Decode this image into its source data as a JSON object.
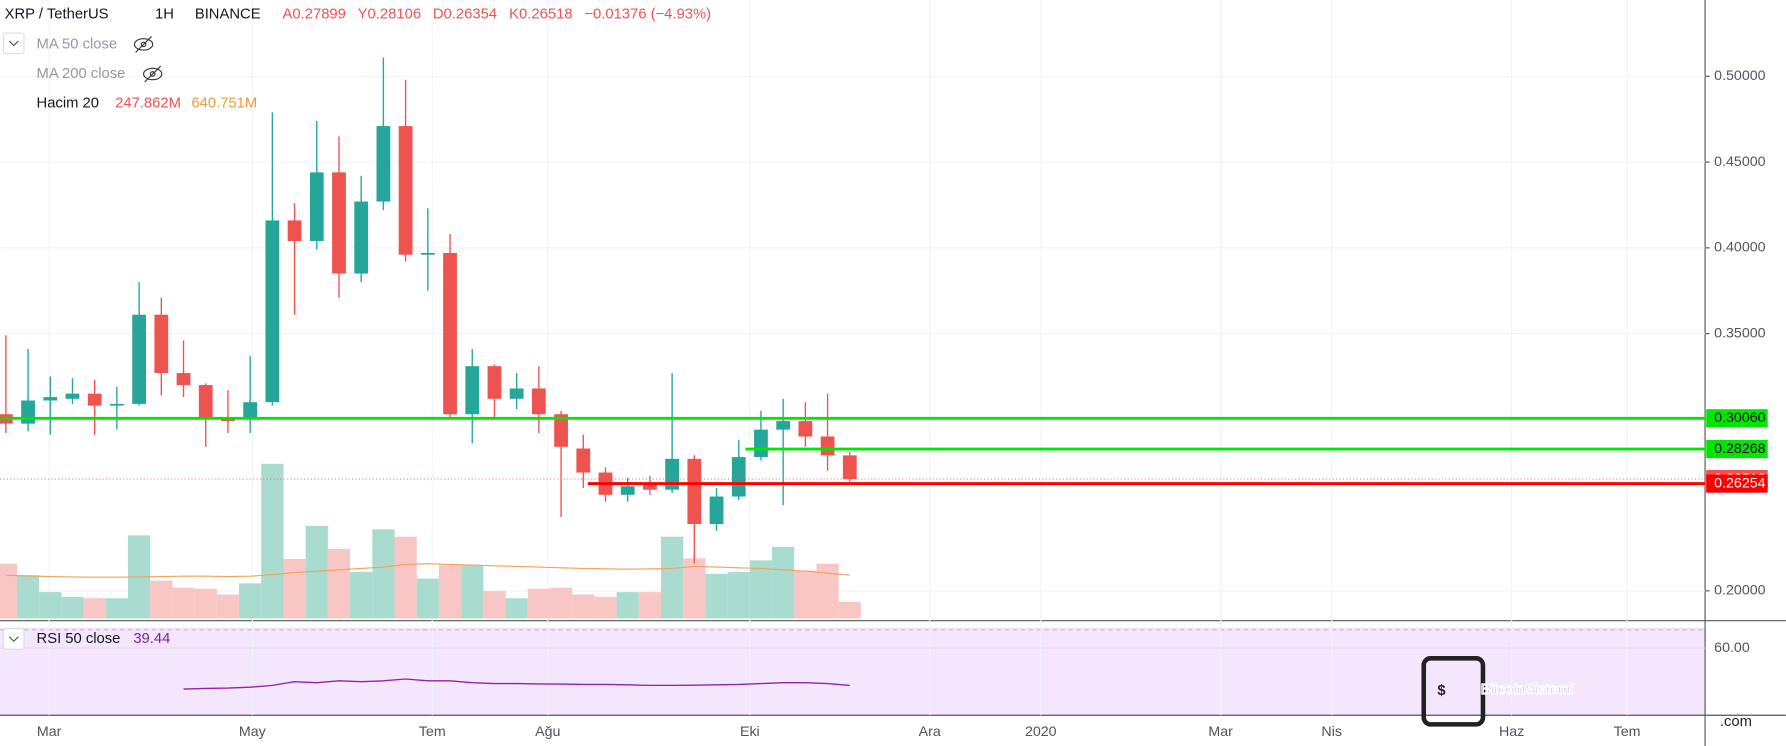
{
  "chart_data": {
    "type": "candlestick",
    "header": {
      "symbol": "XRP / TetherUS",
      "interval": "1H",
      "exchange": "BINANCE",
      "ohlc": [
        "A0.27899",
        "Y0.28106",
        "D0.26354",
        "K0.26518"
      ],
      "change": "−0.01376 (−4.93%)"
    },
    "indicators": {
      "ma50": "MA 50 close",
      "ma200": "MA 200 close",
      "volume": "Hacim 20",
      "volume_values": [
        "247.862M",
        "640.751M"
      ],
      "rsi": "RSI 50 close",
      "rsi_value": "39.44"
    },
    "open": [
      0.303,
      0.2975,
      0.311,
      0.312,
      0.315,
      0.308,
      0.309,
      0.361,
      0.327,
      0.32,
      0.3,
      0.3,
      0.31,
      0.416,
      0.404,
      0.444,
      0.385,
      0.427,
      0.471,
      0.396,
      0.397,
      0.303,
      0.331,
      0.312,
      0.318,
      0.303,
      0.283,
      0.269,
      0.256,
      0.262,
      0.259,
      0.277,
      0.239,
      0.255,
      0.278,
      0.294,
      0.299,
      0.29,
      0.27899
    ],
    "close": [
      0.2975,
      0.311,
      0.313,
      0.315,
      0.308,
      0.309,
      0.361,
      0.327,
      0.32,
      0.3,
      0.299,
      0.31,
      0.416,
      0.404,
      0.444,
      0.385,
      0.427,
      0.471,
      0.396,
      0.397,
      0.303,
      0.331,
      0.312,
      0.318,
      0.303,
      0.284,
      0.269,
      0.256,
      0.261,
      0.259,
      0.277,
      0.239,
      0.255,
      0.278,
      0.294,
      0.299,
      0.29,
      0.279,
      0.26518
    ],
    "high": [
      0.349,
      0.341,
      0.325,
      0.324,
      0.323,
      0.319,
      0.38,
      0.371,
      0.346,
      0.321,
      0.317,
      0.337,
      0.479,
      0.426,
      0.474,
      0.465,
      0.442,
      0.511,
      0.498,
      0.423,
      0.408,
      0.341,
      0.332,
      0.327,
      0.331,
      0.305,
      0.291,
      0.272,
      0.266,
      0.267,
      0.327,
      0.279,
      0.26,
      0.288,
      0.305,
      0.312,
      0.31,
      0.315,
      0.28106
    ],
    "low": [
      0.292,
      0.293,
      0.291,
      0.309,
      0.291,
      0.294,
      0.308,
      0.314,
      0.313,
      0.284,
      0.292,
      0.292,
      0.308,
      0.361,
      0.399,
      0.371,
      0.38,
      0.422,
      0.392,
      0.375,
      0.301,
      0.286,
      0.301,
      0.306,
      0.292,
      0.243,
      0.26,
      0.252,
      0.252,
      0.256,
      0.257,
      0.216,
      0.235,
      0.253,
      0.276,
      0.25,
      0.284,
      0.27,
      0.26354
    ],
    "volume": [
      810,
      640,
      390,
      320,
      300,
      300,
      1230,
      560,
      455,
      440,
      355,
      520,
      2290,
      880,
      1370,
      1030,
      690,
      1320,
      1210,
      590,
      790,
      790,
      405,
      300,
      440,
      455,
      355,
      320,
      390,
      390,
      1210,
      890,
      660,
      690,
      860,
      1060,
      710,
      810,
      247.862
    ],
    "volume_ma": [
      640,
      630,
      620,
      615,
      610,
      610,
      615,
      620,
      625,
      625,
      620,
      625,
      650,
      680,
      700,
      720,
      740,
      760,
      800,
      810,
      800,
      790,
      780,
      770,
      760,
      750,
      740,
      735,
      730,
      735,
      740,
      770,
      760,
      750,
      740,
      720,
      700,
      670,
      640.751
    ],
    "rsi": [
      null,
      null,
      null,
      null,
      null,
      null,
      null,
      null,
      37.5,
      37.8,
      38,
      38.5,
      39.5,
      41.5,
      41,
      42,
      41.5,
      42,
      43,
      42,
      42,
      41,
      40.5,
      40.5,
      40.3,
      40.2,
      40,
      40,
      39.8,
      39.5,
      39.5,
      39.6,
      39.8,
      40,
      40.5,
      41,
      41,
      40.5,
      39.44
    ],
    "up_color": "#26a69a",
    "down_color": "#ef5350",
    "levels": [
      {
        "value": 0.3006,
        "label": "0.30060",
        "color": "#00e600",
        "from": -0.26
      },
      {
        "value": 0.28268,
        "label": "0.28268",
        "color": "#00e600",
        "from": 33.3
      },
      {
        "value": 0.26518,
        "label": "0.26518",
        "color": "#ef5350",
        "from": -0.26,
        "dotted": true
      },
      {
        "value": 0.26254,
        "label": "0.26254",
        "color": "#ff0000",
        "from": 26.2
      }
    ],
    "ylim": [
      0.1826,
      0.5445
    ],
    "yticks": [
      {
        "value": 0.2,
        "label": "0.20000"
      },
      {
        "value": 0.35,
        "label": "0.35000"
      },
      {
        "value": 0.4,
        "label": "0.40000"
      },
      {
        "value": 0.45,
        "label": "0.45000"
      },
      {
        "value": 0.5,
        "label": "0.50000"
      }
    ],
    "rsi_ylim": [
      23.1,
      71.25
    ],
    "rsi_yticks": [
      {
        "value": 60,
        "label": "60.00"
      }
    ],
    "xlim": [
      -0.26,
      76.51
    ],
    "xticks": [
      {
        "value": 1.95,
        "label": "Mar"
      },
      {
        "value": 11.1,
        "label": "May"
      },
      {
        "value": 19.2,
        "label": "Tem"
      },
      {
        "value": 24.4,
        "label": "Ağu"
      },
      {
        "value": 33.5,
        "label": "Eki"
      },
      {
        "value": 41.6,
        "label": "Ara"
      },
      {
        "value": 46.6,
        "label": "2020"
      },
      {
        "value": 54.7,
        "label": "Mar"
      },
      {
        "value": 59.7,
        "label": "Nis"
      },
      {
        "value": 67.8,
        "label": "Haz"
      },
      {
        "value": 73,
        "label": "Tem"
      }
    ],
    "watermark": [
      "BitcoinSistemi",
      ".com"
    ]
  }
}
